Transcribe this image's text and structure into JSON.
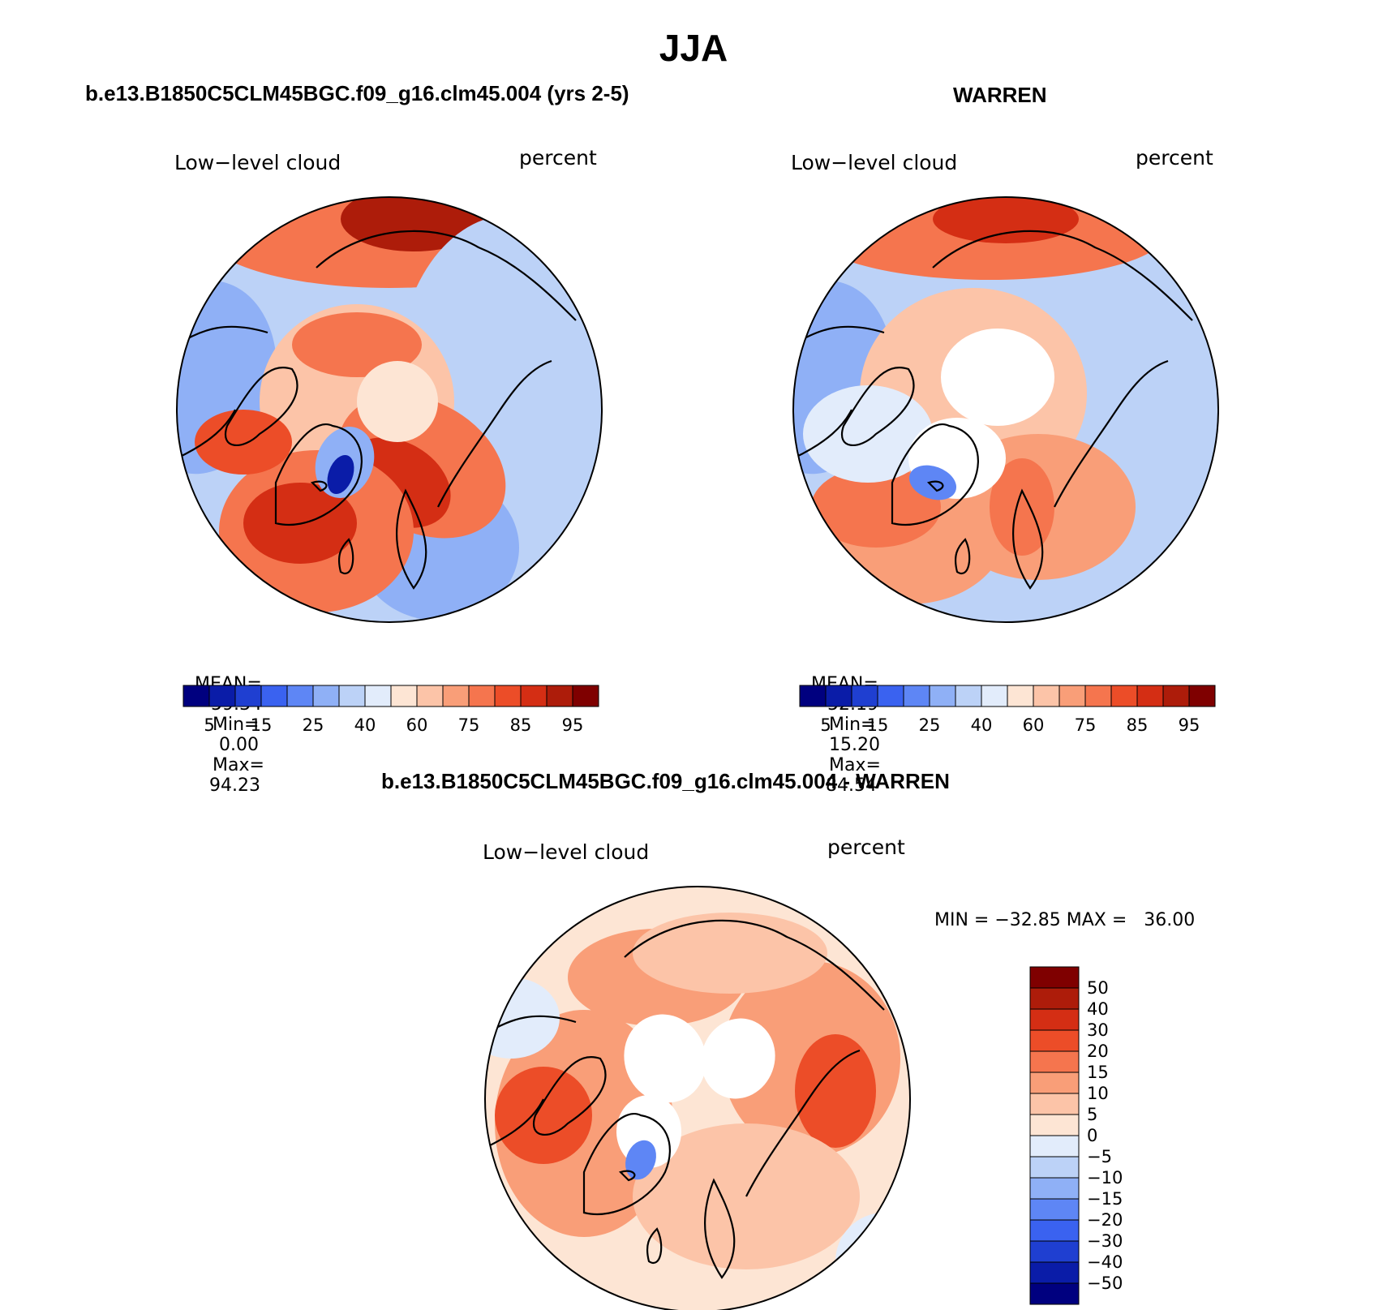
{
  "page_title": "JJA",
  "panels": {
    "model": {
      "title": "b.e13.B1850C5CLM45BGC.f09_g16.clm45.004 (yrs 2-5)",
      "variable": "Low−level cloud",
      "units": "percent",
      "stats": {
        "mean_label": "MEAN=",
        "mean": "59.34",
        "min_label": "Min=",
        "min": "0.00",
        "max_label": "Max=",
        "max": "94.23"
      }
    },
    "obs": {
      "title": "WARREN",
      "variable": "Low−level cloud",
      "units": "percent",
      "stats": {
        "mean_label": "MEAN=",
        "mean": "52.19",
        "min_label": "Min=",
        "min": "15.20",
        "max_label": "Max=",
        "max": "84.54"
      }
    },
    "diff": {
      "title": "b.e13.B1850C5CLM45BGC.f09_g16.clm45.004 - WARREN",
      "variable": "Low−level cloud",
      "units": "percent",
      "minmax_text": "MIN = −32.85 MAX =   36.00"
    }
  },
  "chart_data": [
    {
      "type": "heatmap",
      "title": "b.e13.B1850C5CLM45BGC.f09_g16.clm45.004 (yrs 2-5)",
      "variable": "Low−level cloud",
      "units": "percent",
      "projection": "north polar stereographic",
      "stats": {
        "mean": 59.34,
        "min": 0.0,
        "max": 94.23
      },
      "colorbar": {
        "orientation": "horizontal",
        "tick_labels": [
          "5",
          "15",
          "25",
          "40",
          "60",
          "75",
          "85",
          "95"
        ],
        "colors": [
          "#00007f",
          "#0a1ca8",
          "#1f3fd1",
          "#3a62f0",
          "#5e86f5",
          "#8fb0f6",
          "#bcd2f7",
          "#e2ecfb",
          "#fde5d4",
          "#fcc4a8",
          "#f99e78",
          "#f5754e",
          "#ec4d28",
          "#d42e14",
          "#ad1c0a",
          "#7f0000"
        ]
      }
    },
    {
      "type": "heatmap",
      "title": "WARREN",
      "variable": "Low−level cloud",
      "units": "percent",
      "projection": "north polar stereographic",
      "stats": {
        "mean": 52.19,
        "min": 15.2,
        "max": 84.54
      },
      "colorbar": {
        "orientation": "horizontal",
        "tick_labels": [
          "5",
          "15",
          "25",
          "40",
          "60",
          "75",
          "85",
          "95"
        ],
        "colors": [
          "#00007f",
          "#0a1ca8",
          "#1f3fd1",
          "#3a62f0",
          "#5e86f5",
          "#8fb0f6",
          "#bcd2f7",
          "#e2ecfb",
          "#fde5d4",
          "#fcc4a8",
          "#f99e78",
          "#f5754e",
          "#ec4d28",
          "#d42e14",
          "#ad1c0a",
          "#7f0000"
        ]
      }
    },
    {
      "type": "heatmap",
      "title": "b.e13.B1850C5CLM45BGC.f09_g16.clm45.004 - WARREN",
      "variable": "Low−level cloud",
      "units": "percent",
      "projection": "north polar stereographic",
      "stats": {
        "min": -32.85,
        "max": 36.0
      },
      "colorbar": {
        "orientation": "vertical",
        "tick_labels": [
          "50",
          "40",
          "30",
          "20",
          "15",
          "10",
          "5",
          "0",
          "−5",
          "−10",
          "−15",
          "−20",
          "−30",
          "−40",
          "−50"
        ],
        "colors": [
          "#7f0000",
          "#ad1c0a",
          "#d42e14",
          "#ec4d28",
          "#f5754e",
          "#f99e78",
          "#fcc4a8",
          "#fde5d4",
          "#e2ecfb",
          "#bcd2f7",
          "#8fb0f6",
          "#5e86f5",
          "#3a62f0",
          "#1f3fd1",
          "#0a1ca8",
          "#00007f"
        ]
      }
    }
  ]
}
